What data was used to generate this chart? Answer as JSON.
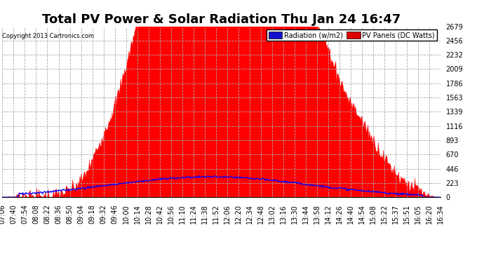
{
  "title": "Total PV Power & Solar Radiation Thu Jan 24 16:47",
  "copyright": "Copyright 2013 Cartronics.com",
  "legend_labels": [
    "Radiation (w/m2)",
    "PV Panels (DC Watts)"
  ],
  "ymin": 0.0,
  "ymax": 2678.7,
  "yticks": [
    0.0,
    223.2,
    446.5,
    669.7,
    892.9,
    1116.1,
    1339.4,
    1562.6,
    1785.8,
    2009.0,
    2232.3,
    2455.5,
    2678.7
  ],
  "background_color": "#ffffff",
  "grid_color": "#aaaaaa",
  "fill_color": "#ff0000",
  "line_color": "#0000ff",
  "title_fontsize": 13,
  "tick_fontsize": 7,
  "xtick_labels": [
    "07:06",
    "07:40",
    "07:54",
    "08:08",
    "08:22",
    "08:36",
    "08:50",
    "09:04",
    "09:18",
    "09:32",
    "09:46",
    "10:00",
    "10:14",
    "10:28",
    "10:42",
    "10:56",
    "11:10",
    "11:24",
    "11:38",
    "11:52",
    "12:06",
    "12:20",
    "12:34",
    "12:48",
    "13:02",
    "13:16",
    "13:30",
    "13:44",
    "13:58",
    "14:12",
    "14:26",
    "14:40",
    "14:54",
    "15:08",
    "15:22",
    "15:37",
    "15:51",
    "16:05",
    "16:20",
    "16:34"
  ]
}
